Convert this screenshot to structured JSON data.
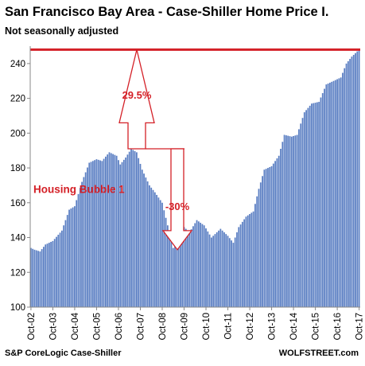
{
  "header": {
    "title": "San Francisco Bay Area - Case-Shiller Home Price I.",
    "subtitle": "Not seasonally adjusted"
  },
  "footer": {
    "source": "S&P CoreLogic Case-Shiller",
    "site": "WOLFSTREET.com"
  },
  "colors": {
    "bars": "#5b7fc3",
    "annotation": "#d42027",
    "axis": "#888888"
  },
  "chart_data": {
    "type": "bar",
    "title": "San Francisco Bay Area - Case-Shiller Home Price I.",
    "subtitle": "Not seasonally adjusted",
    "ylim": [
      100,
      250
    ],
    "yticks": [
      100,
      120,
      140,
      160,
      180,
      200,
      220,
      240
    ],
    "xtick_labels": [
      "Oct-02",
      "Oct-03",
      "Oct-04",
      "Oct-05",
      "Oct-06",
      "Oct-07",
      "Oct-08",
      "Oct-09",
      "Oct-10",
      "Oct-11",
      "Oct-12",
      "Oct-13",
      "Oct-14",
      "Oct-15",
      "Oct-16",
      "Oct-17"
    ],
    "grid": false,
    "anchors": [
      [
        "2002-10",
        134
      ],
      [
        "2002-12",
        133
      ],
      [
        "2003-03",
        132
      ],
      [
        "2003-06",
        136
      ],
      [
        "2003-10",
        138
      ],
      [
        "2004-03",
        144
      ],
      [
        "2004-07",
        156
      ],
      [
        "2004-10",
        158
      ],
      [
        "2005-02",
        172
      ],
      [
        "2005-06",
        183
      ],
      [
        "2005-10",
        185
      ],
      [
        "2006-01",
        184
      ],
      [
        "2006-05",
        189
      ],
      [
        "2006-09",
        187
      ],
      [
        "2006-11",
        182
      ],
      [
        "2007-02",
        186
      ],
      [
        "2007-05",
        191
      ],
      [
        "2007-08",
        189
      ],
      [
        "2007-11",
        179
      ],
      [
        "2008-03",
        170
      ],
      [
        "2008-06",
        166
      ],
      [
        "2008-10",
        160
      ],
      [
        "2009-01",
        147
      ],
      [
        "2009-04",
        134
      ],
      [
        "2009-07",
        139
      ],
      [
        "2009-10",
        146
      ],
      [
        "2010-01",
        143
      ],
      [
        "2010-05",
        150
      ],
      [
        "2010-09",
        147
      ],
      [
        "2011-01",
        140
      ],
      [
        "2011-06",
        145
      ],
      [
        "2011-10",
        141
      ],
      [
        "2012-01",
        137
      ],
      [
        "2012-04",
        146
      ],
      [
        "2012-08",
        152
      ],
      [
        "2012-12",
        155
      ],
      [
        "2013-03",
        168
      ],
      [
        "2013-06",
        179
      ],
      [
        "2013-10",
        181
      ],
      [
        "2014-02",
        187
      ],
      [
        "2014-05",
        199
      ],
      [
        "2014-09",
        198
      ],
      [
        "2014-12",
        199
      ],
      [
        "2015-04",
        212
      ],
      [
        "2015-08",
        217
      ],
      [
        "2015-12",
        218
      ],
      [
        "2016-04",
        228
      ],
      [
        "2016-08",
        230
      ],
      [
        "2016-12",
        232
      ],
      [
        "2017-03",
        240
      ],
      [
        "2017-06",
        244
      ],
      [
        "2017-10",
        248
      ]
    ],
    "reference_line": {
      "value": 248
    },
    "annotations": [
      {
        "text": "29.5%",
        "type": "up-arrow",
        "from": 191,
        "to": 248
      },
      {
        "text": "-30%",
        "type": "down-arrow",
        "from": 191,
        "to": 133
      },
      {
        "text": "Housing Bubble 1"
      }
    ]
  }
}
